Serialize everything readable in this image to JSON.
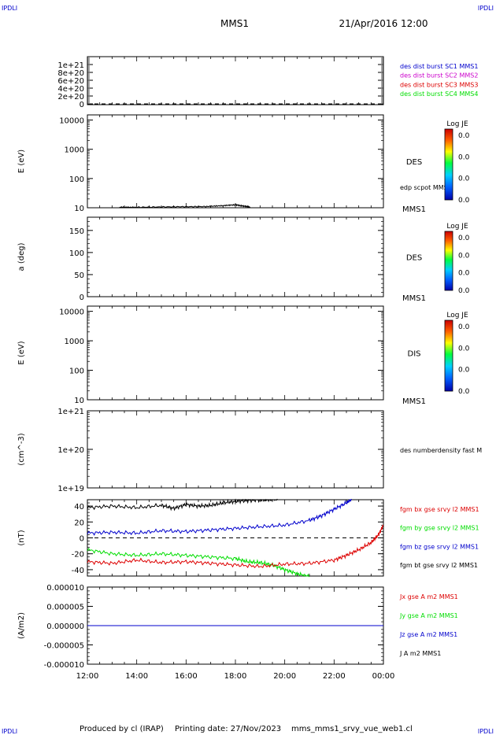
{
  "corner_labels": {
    "top_left": "IPDLI",
    "top_right": "IPDLI",
    "bottom_left": "IPDLI",
    "bottom_right": "IPDLI"
  },
  "header": {
    "title": "MMS1",
    "date": "21/Apr/2016 12:00"
  },
  "footer": {
    "producer": "Produced by cl (IRAP)",
    "printing": "Printing date: 27/Nov/2023",
    "filename": "mms_mms1_srvy_vue_web1.cl"
  },
  "colors": {
    "black": "#000000",
    "blue": "#0000cc",
    "green": "#00dd00",
    "red": "#dd0000",
    "magenta": "#cc00cc"
  },
  "time_axis": {
    "ticks": [
      "12:00",
      "14:00",
      "16:00",
      "18:00",
      "20:00",
      "22:00",
      "00:00"
    ],
    "range_hours": [
      12,
      24
    ]
  },
  "colorbar": {
    "title": "Log JE",
    "labels": [
      "0.0",
      "0.0",
      "0.0",
      "0.0"
    ]
  },
  "chart_data": [
    {
      "type": "line",
      "panel": "dist-burst",
      "ylabel": "",
      "ylim": [
        -2e+19,
        1.2e+21
      ],
      "yticks": [
        "0",
        "2e+20",
        "4e+20",
        "6e+20",
        "8e+20",
        "1e+21"
      ],
      "ytick_values": [
        0,
        2e+20,
        4e+20,
        6e+20,
        8e+20,
        1e+21
      ],
      "dashed_zero": true,
      "legend": [
        {
          "text": "des dist burst SC1 MMS1",
          "color": "#0000cc"
        },
        {
          "text": "des dist burst SC2 MMS2",
          "color": "#cc00cc"
        },
        {
          "text": "des dist burst SC3 MMS3",
          "color": "#dd0000"
        },
        {
          "text": "des dist burst SC4 MMS4",
          "color": "#00dd00"
        }
      ]
    },
    {
      "type": "heatmap",
      "panel": "des-energy",
      "ylabel": "E (eV)",
      "yscale": "log",
      "ylim": [
        10,
        15000
      ],
      "yticks": [
        "10",
        "100",
        "1000",
        "10000"
      ],
      "ytick_values": [
        10,
        100,
        1000,
        10000
      ],
      "label": "DES",
      "overlay_label": "edp scpot MMS1",
      "spacecraft": "MMS1",
      "series": [
        {
          "name": "edp scpot MMS1",
          "x": [
            13.3,
            14.0,
            15.5,
            16.8,
            17.5,
            18.0,
            18.3,
            18.6
          ],
          "y": [
            10.5,
            10.4,
            10.8,
            11.0,
            11.8,
            12.6,
            11.5,
            10.6
          ]
        }
      ]
    },
    {
      "type": "heatmap",
      "panel": "des-pitch",
      "ylabel": "a (deg)",
      "ylim": [
        0,
        180
      ],
      "yticks": [
        "0",
        "50",
        "100",
        "150"
      ],
      "ytick_values": [
        0,
        50,
        100,
        150
      ],
      "label": "DES",
      "spacecraft": "MMS1"
    },
    {
      "type": "heatmap",
      "panel": "dis-energy",
      "ylabel": "E (eV)",
      "yscale": "log",
      "ylim": [
        10,
        15000
      ],
      "yticks": [
        "10",
        "100",
        "1000",
        "10000"
      ],
      "ytick_values": [
        10,
        100,
        1000,
        10000
      ],
      "label": "DIS",
      "spacecraft": "MMS1"
    },
    {
      "type": "line",
      "panel": "density",
      "ylabel": "(cm^-3)",
      "yscale": "log",
      "ylim": [
        1e+19,
        1e+21
      ],
      "yticks": [
        "1e+19",
        "1e+20",
        "1e+21"
      ],
      "ytick_values": [
        1e+19,
        1e+20,
        1e+21
      ],
      "legend": [
        {
          "text": "des numberdensity fast M",
          "color": "#000000"
        }
      ]
    },
    {
      "type": "line",
      "panel": "fgm",
      "ylabel": "(nT)",
      "ylim": [
        -48,
        48
      ],
      "yticks": [
        "-40",
        "-20",
        "0",
        "20",
        "40"
      ],
      "ytick_values": [
        -40,
        -20,
        0,
        20,
        40
      ],
      "dashed_zero": true,
      "legend": [
        {
          "text": "fgm bx gse srvy l2 MMS1",
          "color": "#dd0000"
        },
        {
          "text": "fgm by gse srvy l2 MMS1",
          "color": "#00dd00"
        },
        {
          "text": "fgm bz gse srvy l2 MMS1",
          "color": "#0000cc"
        },
        {
          "text": "fgm bt gse srvy l2 MMS1",
          "color": "#000000"
        }
      ],
      "series": [
        {
          "name": "fgm bt gse srvy l2 MMS1",
          "color": "#000000",
          "x": [
            12.0,
            13.0,
            14.0,
            15.0,
            15.5,
            16.0,
            16.5,
            17.0,
            17.5,
            18.0,
            18.5,
            19.0,
            19.3,
            19.7
          ],
          "y": [
            38,
            40,
            38,
            41,
            37,
            42,
            40,
            41,
            44,
            46,
            47,
            48,
            48,
            49
          ]
        },
        {
          "name": "fgm bz gse srvy l2 MMS1",
          "color": "#0000cc",
          "x": [
            12.0,
            13.0,
            14.0,
            15.0,
            16.0,
            17.0,
            18.0,
            19.0,
            20.0,
            21.0,
            21.5,
            22.0,
            22.5,
            22.7
          ],
          "y": [
            6,
            7,
            6,
            9,
            8,
            10,
            12,
            14,
            16,
            22,
            28,
            36,
            44,
            49
          ]
        },
        {
          "name": "fgm by gse srvy l2 MMS1",
          "color": "#00dd00",
          "x": [
            12.0,
            13.0,
            14.0,
            15.0,
            16.0,
            17.0,
            18.0,
            18.5,
            19.0,
            19.5,
            20.0,
            20.5,
            21.0
          ],
          "y": [
            -15,
            -20,
            -22,
            -20,
            -22,
            -24,
            -26,
            -30,
            -31,
            -34,
            -40,
            -45,
            -49
          ]
        },
        {
          "name": "fgm bx gse srvy l2 MMS1",
          "color": "#dd0000",
          "x": [
            12.0,
            13.0,
            14.0,
            15.0,
            16.0,
            17.0,
            18.0,
            19.0,
            20.0,
            21.0,
            22.0,
            22.5,
            23.0,
            23.5,
            23.8,
            24.0
          ],
          "y": [
            -30,
            -32,
            -28,
            -31,
            -30,
            -32,
            -34,
            -36,
            -33,
            -32,
            -28,
            -22,
            -15,
            -6,
            4,
            16
          ]
        }
      ]
    },
    {
      "type": "line",
      "panel": "current",
      "ylabel": "(A/m2)",
      "ylim": [
        -1e-05,
        1e-05
      ],
      "yticks": [
        "-0.000010",
        "-0.000005",
        "0.000000",
        "0.000005",
        "0.000010"
      ],
      "ytick_values": [
        -1e-05,
        -5e-06,
        0,
        5e-06,
        1e-05
      ],
      "legend": [
        {
          "text": "Jx gse A m2 MMS1",
          "color": "#dd0000"
        },
        {
          "text": "Jy gse A m2 MMS1",
          "color": "#00dd00"
        },
        {
          "text": "Jz gse A m2 MMS1",
          "color": "#0000cc"
        },
        {
          "text": "J A m2 MMS1",
          "color": "#000000"
        }
      ],
      "series": [
        {
          "name": "J A m2 MMS1",
          "color": "#000000",
          "x": [
            12,
            24
          ],
          "y": [
            0,
            0
          ]
        },
        {
          "name": "Jz gse A m2 MMS1",
          "color": "#0000cc",
          "x": [
            12,
            24
          ],
          "y": [
            0,
            0
          ]
        }
      ]
    }
  ]
}
